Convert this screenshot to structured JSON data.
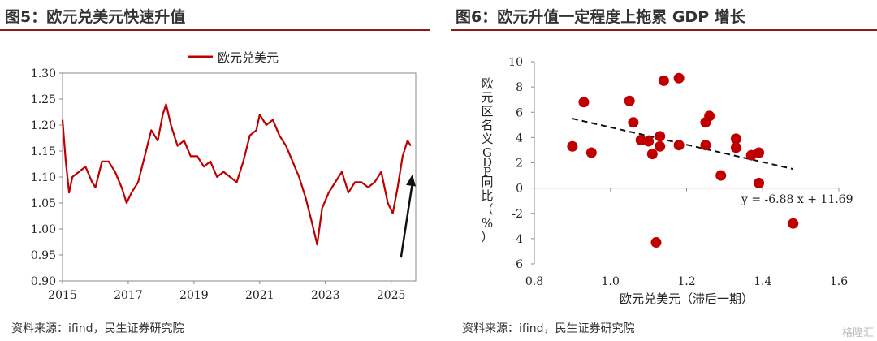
{
  "left_panel": {
    "title": "图5：欧元兑美元快速升值",
    "source": "资料来源：ifind，民生证券研究院"
  },
  "right_panel": {
    "title": "图6：欧元升值一定程度上拖累 GDP 增长",
    "source": "资料来源：ifind，民生证券研究院"
  },
  "watermark": "格隆汇",
  "chart_data": [
    {
      "type": "line",
      "title": "",
      "legend": {
        "entries": [
          "欧元兑美元"
        ],
        "placement": "top-center"
      },
      "color": "#c00000",
      "ylim": [
        0.9,
        1.3
      ],
      "yticks": [
        "0.90",
        "0.95",
        "1.00",
        "1.05",
        "1.10",
        "1.15",
        "1.20",
        "1.25",
        "1.30"
      ],
      "xlim": [
        2015.0,
        2025.75
      ],
      "xticks": [
        "2015",
        "2017",
        "2019",
        "2021",
        "2023",
        "2025"
      ],
      "series": [
        {
          "name": "欧元兑美元",
          "x": [
            2015.0,
            2015.1,
            2015.2,
            2015.3,
            2015.5,
            2015.7,
            2015.9,
            2016.0,
            2016.2,
            2016.4,
            2016.6,
            2016.8,
            2016.95,
            2017.1,
            2017.3,
            2017.5,
            2017.7,
            2017.9,
            2018.05,
            2018.15,
            2018.3,
            2018.5,
            2018.7,
            2018.9,
            2019.1,
            2019.3,
            2019.5,
            2019.7,
            2019.9,
            2020.1,
            2020.3,
            2020.5,
            2020.7,
            2020.9,
            2021.0,
            2021.2,
            2021.4,
            2021.6,
            2021.8,
            2022.0,
            2022.2,
            2022.4,
            2022.6,
            2022.75,
            2022.9,
            2023.1,
            2023.3,
            2023.5,
            2023.7,
            2023.9,
            2024.1,
            2024.3,
            2024.5,
            2024.7,
            2024.9,
            2025.05,
            2025.2,
            2025.35,
            2025.5,
            2025.6
          ],
          "values": [
            1.21,
            1.13,
            1.07,
            1.1,
            1.11,
            1.12,
            1.09,
            1.08,
            1.13,
            1.13,
            1.11,
            1.08,
            1.05,
            1.07,
            1.09,
            1.14,
            1.19,
            1.17,
            1.22,
            1.24,
            1.2,
            1.16,
            1.17,
            1.14,
            1.14,
            1.12,
            1.13,
            1.1,
            1.11,
            1.1,
            1.09,
            1.13,
            1.18,
            1.19,
            1.22,
            1.2,
            1.21,
            1.18,
            1.16,
            1.13,
            1.1,
            1.06,
            1.01,
            0.97,
            1.04,
            1.07,
            1.09,
            1.11,
            1.07,
            1.09,
            1.09,
            1.08,
            1.09,
            1.11,
            1.05,
            1.03,
            1.08,
            1.14,
            1.17,
            1.16
          ]
        }
      ],
      "annotations": [
        {
          "type": "arrow",
          "from": [
            2025.3,
            0.945
          ],
          "to": [
            2025.65,
            1.105
          ]
        }
      ]
    },
    {
      "type": "scatter",
      "title": "",
      "xlabel": "欧元兑美元（滞后一期）",
      "ylabel": "欧元区名义GDP同比（%）",
      "xlim": [
        0.8,
        1.6
      ],
      "ylim": [
        -6,
        10
      ],
      "xticks": [
        "0.8",
        "1.0",
        "1.2",
        "1.4",
        "1.6"
      ],
      "yticks": [
        "-6",
        "-4",
        "-2",
        "0",
        "2",
        "4",
        "6",
        "8",
        "10"
      ],
      "color": "#c00000",
      "points": [
        [
          0.9,
          3.3
        ],
        [
          0.93,
          6.8
        ],
        [
          0.95,
          2.8
        ],
        [
          1.05,
          6.9
        ],
        [
          1.06,
          5.2
        ],
        [
          1.08,
          3.8
        ],
        [
          1.1,
          3.7
        ],
        [
          1.11,
          2.7
        ],
        [
          1.12,
          -4.3
        ],
        [
          1.13,
          4.1
        ],
        [
          1.13,
          3.3
        ],
        [
          1.14,
          8.5
        ],
        [
          1.18,
          8.7
        ],
        [
          1.18,
          3.4
        ],
        [
          1.25,
          5.2
        ],
        [
          1.25,
          3.4
        ],
        [
          1.26,
          5.7
        ],
        [
          1.29,
          1.0
        ],
        [
          1.33,
          3.9
        ],
        [
          1.33,
          3.2
        ],
        [
          1.37,
          2.6
        ],
        [
          1.39,
          2.8
        ],
        [
          1.39,
          0.4
        ],
        [
          1.48,
          -2.8
        ]
      ],
      "trendline": {
        "slope": -6.88,
        "intercept": 11.69,
        "x_range": [
          0.9,
          1.48
        ],
        "style": "dashed"
      },
      "equation": "y = -6.88 x + 11.69"
    }
  ]
}
